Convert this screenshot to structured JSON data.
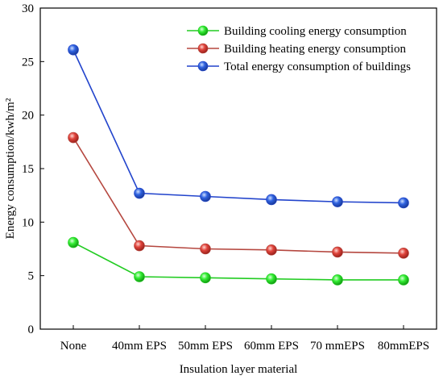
{
  "chart_data": {
    "type": "line",
    "title": "",
    "xlabel": "Insulation layer material",
    "ylabel": "Energy consumption/kwh/m²",
    "categories": [
      "None",
      "40mm EPS",
      "50mm EPS",
      "60mm EPS",
      "70 mmEPS",
      "80mmEPS"
    ],
    "ylim": [
      0,
      30
    ],
    "yticks": [
      0,
      5,
      10,
      15,
      20,
      25,
      30
    ],
    "grid": false,
    "legend_position": "top-right",
    "series": [
      {
        "name": "Building cooling energy consumption",
        "values": [
          8.1,
          4.9,
          4.8,
          4.7,
          4.6,
          4.6
        ],
        "line_color": "#22cc22",
        "marker_color": "#33ee33"
      },
      {
        "name": "Building heating energy consumption",
        "values": [
          17.9,
          7.8,
          7.5,
          7.4,
          7.2,
          7.1
        ],
        "line_color": "#b5473f",
        "marker_color": "#e0443c"
      },
      {
        "name": "Total energy consumption of buildings",
        "values": [
          26.1,
          12.7,
          12.4,
          12.1,
          11.9,
          11.8
        ],
        "line_color": "#2244cc",
        "marker_color": "#2f62e0"
      }
    ]
  }
}
